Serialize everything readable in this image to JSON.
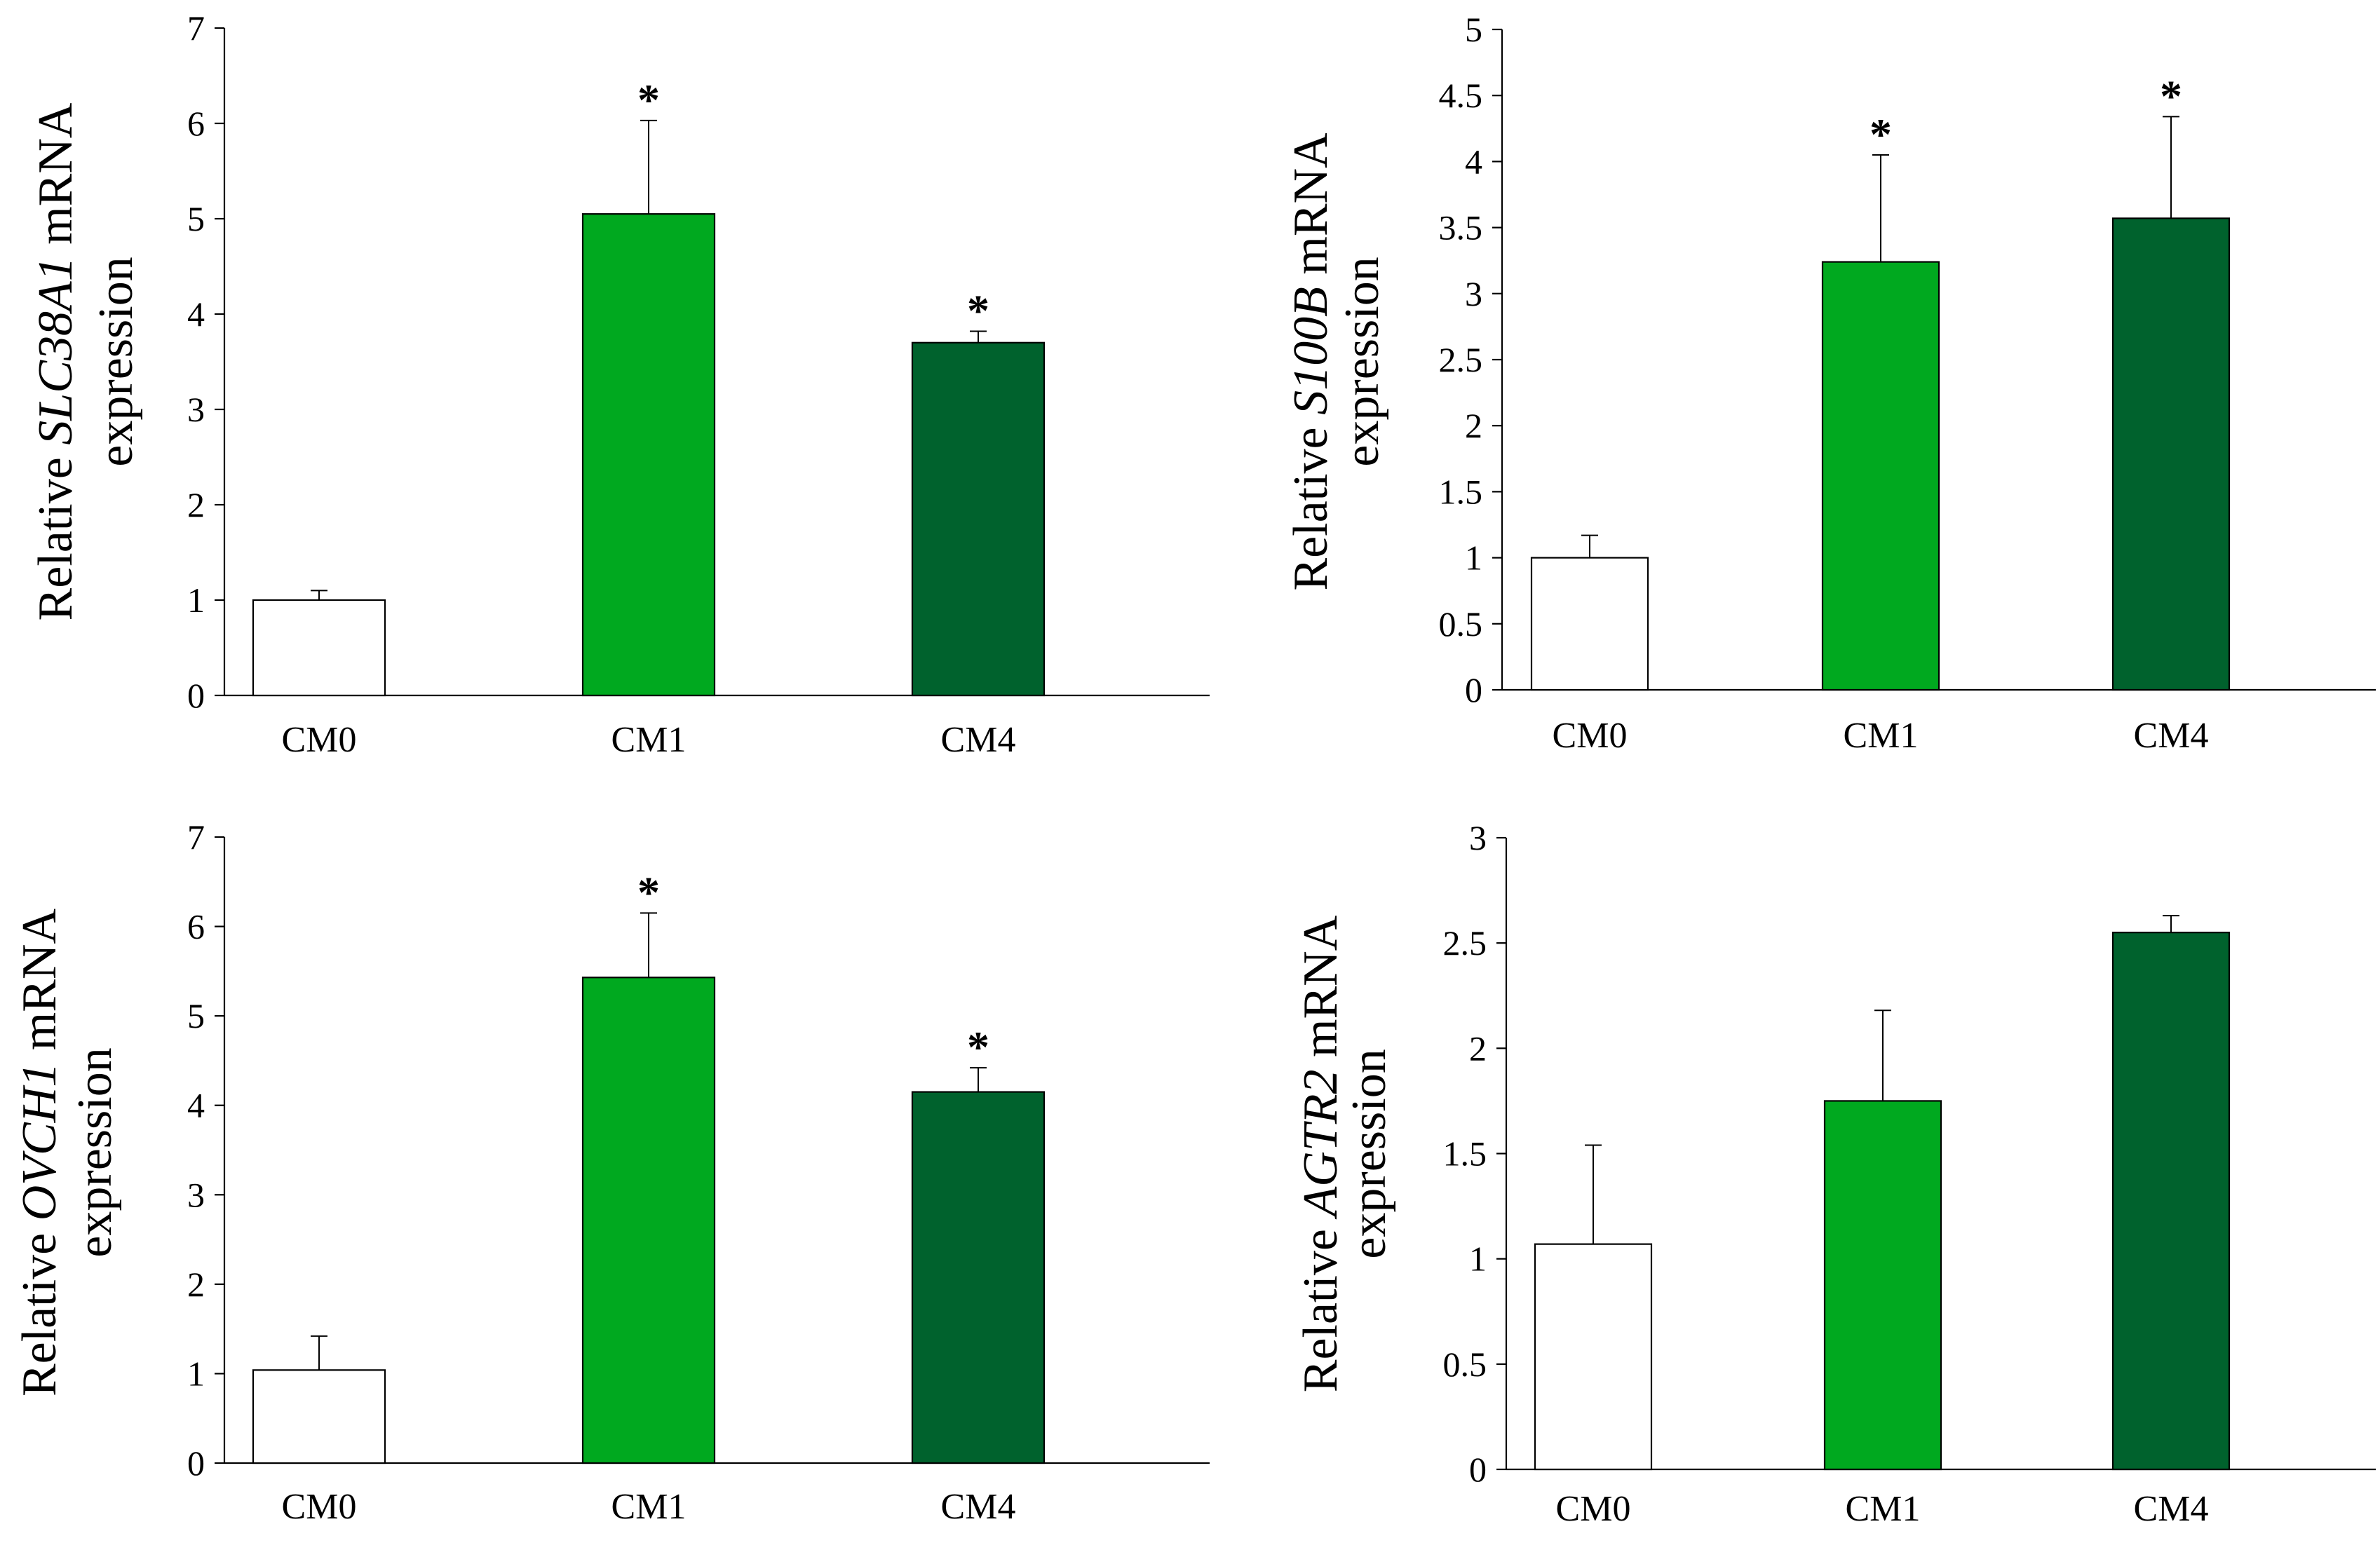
{
  "colors": {
    "CM0": "#ffffff",
    "CM1": "#00a91f",
    "CM4": "#00622d",
    "axis": "#000000"
  },
  "chart_data": [
    {
      "type": "bar",
      "ylabel": {
        "prefix": "Relative ",
        "gene": "SLC38A1",
        "suffix": " mRNA",
        "line2": "expression"
      },
      "categories": [
        "CM0",
        "CM1",
        "CM4"
      ],
      "values": [
        1.0,
        5.05,
        3.7
      ],
      "errors": [
        0.1,
        0.98,
        0.12
      ],
      "significance": [
        "",
        "*",
        "*"
      ],
      "ylim": [
        0,
        7
      ],
      "yticks": [
        "0",
        "1",
        "2",
        "3",
        "4",
        "5",
        "6",
        "7"
      ],
      "ytick_values": [
        0,
        1,
        2,
        3,
        4,
        5,
        6,
        7
      ]
    },
    {
      "type": "bar",
      "ylabel": {
        "prefix": "Relative ",
        "gene": "S100B",
        "suffix": " mRNA",
        "line2": "expression"
      },
      "categories": [
        "CM0",
        "CM1",
        "CM4"
      ],
      "values": [
        1.0,
        3.24,
        3.57
      ],
      "errors": [
        0.17,
        0.81,
        0.77
      ],
      "significance": [
        "",
        "*",
        "*"
      ],
      "ylim": [
        0,
        5
      ],
      "yticks": [
        "0",
        "0.5",
        "1",
        "1.5",
        "2",
        "2.5",
        "3",
        "3.5",
        "4",
        "4.5",
        "5"
      ],
      "ytick_values": [
        0,
        0.5,
        1,
        1.5,
        2,
        2.5,
        3,
        3.5,
        4,
        4.5,
        5
      ]
    },
    {
      "type": "bar",
      "ylabel": {
        "prefix": "Relative ",
        "gene": "OVCH1",
        "suffix": " mRNA",
        "line2": "expression"
      },
      "categories": [
        "CM0",
        "CM1",
        "CM4"
      ],
      "values": [
        1.04,
        5.43,
        4.15
      ],
      "errors": [
        0.38,
        0.72,
        0.27
      ],
      "significance": [
        "",
        "*",
        "*"
      ],
      "ylim": [
        0,
        7
      ],
      "yticks": [
        "0",
        "1",
        "2",
        "3",
        "4",
        "5",
        "6",
        "7"
      ],
      "ytick_values": [
        0,
        1,
        2,
        3,
        4,
        5,
        6,
        7
      ]
    },
    {
      "type": "bar",
      "ylabel": {
        "prefix": "Relative ",
        "gene": "AGTR2",
        "suffix": " mRNA",
        "line2": "expression"
      },
      "categories": [
        "CM0",
        "CM1",
        "CM4"
      ],
      "values": [
        1.07,
        1.75,
        2.55
      ],
      "errors": [
        0.47,
        0.43,
        0.08
      ],
      "significance": [
        "",
        "",
        ""
      ],
      "ylim": [
        0,
        3
      ],
      "yticks": [
        "0",
        "0.5",
        "1",
        "1.5",
        "2",
        "2.5",
        "3"
      ],
      "ytick_values": [
        0,
        0.5,
        1,
        1.5,
        2,
        2.5,
        3
      ]
    }
  ]
}
